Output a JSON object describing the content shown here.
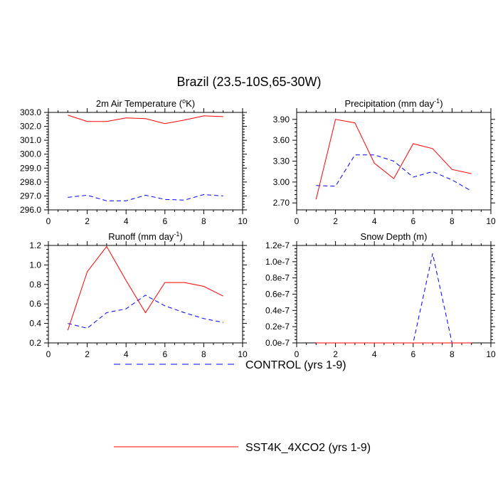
{
  "title": "Brazil (23.5-10S,65-30W)",
  "legend": {
    "entries": [
      {
        "label": "CONTROL (yrs 1-9)",
        "color": "#0000ff",
        "dash": true
      },
      {
        "label": "SST4K_4XCO2 (yrs 1-9)",
        "color": "#ff0000",
        "dash": false
      }
    ]
  },
  "chart_data": [
    {
      "type": "line",
      "title": "2m Air Temperature (",
      "title_sup": "o",
      "title_after": "K)",
      "x": [
        1,
        2,
        3,
        4,
        5,
        6,
        7,
        8,
        9
      ],
      "xlim": [
        0,
        10
      ],
      "xticks": [
        0,
        2,
        4,
        6,
        8,
        10
      ],
      "xtick_labels": [
        "0",
        "2",
        "4",
        "6",
        "8",
        "10"
      ],
      "ylim": [
        296,
        303
      ],
      "yticks": [
        296,
        297,
        298,
        299,
        300,
        301,
        302,
        303
      ],
      "ytick_labels": [
        "296.0",
        "297.0",
        "298.0",
        "299.0",
        "300.0",
        "301.0",
        "302.0",
        "303.0"
      ],
      "yaxis_side": "left",
      "series": [
        {
          "name": "CONTROL (yrs 1-9)",
          "values": [
            296.9,
            297.05,
            296.65,
            296.65,
            297.05,
            296.75,
            296.7,
            297.1,
            297.0
          ]
        },
        {
          "name": "SST4K_4XCO2 (yrs 1-9)",
          "values": [
            302.8,
            302.35,
            302.35,
            302.6,
            302.55,
            302.2,
            302.45,
            302.75,
            302.7
          ]
        }
      ]
    },
    {
      "type": "line",
      "title": "Precipitation (mm day",
      "title_sup": "-1",
      "title_after": ")",
      "x": [
        1,
        2,
        3,
        4,
        5,
        6,
        7,
        8,
        9
      ],
      "xlim": [
        0,
        10
      ],
      "xticks": [
        0,
        2,
        4,
        6,
        8,
        10
      ],
      "xtick_labels": [
        "0",
        "2",
        "4",
        "6",
        "8",
        "10"
      ],
      "ylim": [
        2.6,
        4.0
      ],
      "yticks": [
        2.7,
        3.0,
        3.3,
        3.6,
        3.9
      ],
      "ytick_labels": [
        "2.70",
        "3.00",
        "3.30",
        "3.60",
        "3.90"
      ],
      "yaxis_side": "left",
      "series": [
        {
          "name": "CONTROL (yrs 1-9)",
          "values": [
            2.95,
            2.94,
            3.39,
            3.39,
            3.3,
            3.07,
            3.15,
            3.03,
            2.87
          ]
        },
        {
          "name": "SST4K_4XCO2 (yrs 1-9)",
          "values": [
            2.75,
            3.9,
            3.85,
            3.27,
            3.05,
            3.55,
            3.48,
            3.18,
            3.12
          ]
        }
      ]
    },
    {
      "type": "line",
      "title": "Runoff (mm day",
      "title_sup": "-1",
      "title_after": ")",
      "x": [
        1,
        2,
        3,
        4,
        5,
        6,
        7,
        8,
        9
      ],
      "xlim": [
        0,
        10
      ],
      "xticks": [
        0,
        2,
        4,
        6,
        8,
        10
      ],
      "xtick_labels": [
        "0",
        "2",
        "4",
        "6",
        "8",
        "10"
      ],
      "ylim": [
        0.2,
        1.2
      ],
      "yticks": [
        0.2,
        0.4,
        0.6,
        0.8,
        1.0,
        1.2
      ],
      "ytick_labels": [
        "0.2",
        "0.4",
        "0.6",
        "0.8",
        "1.0",
        "1.2"
      ],
      "yaxis_side": "left",
      "series": [
        {
          "name": "CONTROL (yrs 1-9)",
          "values": [
            0.4,
            0.35,
            0.51,
            0.55,
            0.69,
            0.58,
            0.51,
            0.45,
            0.41
          ]
        },
        {
          "name": "SST4K_4XCO2 (yrs 1-9)",
          "values": [
            0.33,
            0.93,
            1.19,
            0.84,
            0.51,
            0.82,
            0.82,
            0.78,
            0.68
          ]
        }
      ]
    },
    {
      "type": "line",
      "title": "Snow Depth (m)",
      "title_sup": "",
      "title_after": "",
      "x": [
        1,
        2,
        3,
        4,
        5,
        6,
        7,
        8,
        9
      ],
      "xlim": [
        0,
        10
      ],
      "xticks": [
        0,
        2,
        4,
        6,
        8,
        10
      ],
      "xtick_labels": [
        "0",
        "2",
        "4",
        "6",
        "8",
        "10"
      ],
      "ylim": [
        0,
        1.2e-07
      ],
      "yticks": [
        0,
        2e-08,
        4e-08,
        6e-08,
        8e-08,
        1e-07,
        1.2e-07
      ],
      "ytick_labels": [
        "0.0e-7",
        "0.2e-7",
        "0.4e-7",
        "0.6e-7",
        "0.8e-7",
        "1.0e-7",
        "1.2e-7"
      ],
      "yaxis_side": "left",
      "series": [
        {
          "name": "CONTROL (yrs 1-9)",
          "values": [
            0,
            0,
            0,
            0,
            0,
            0,
            1.1e-07,
            0,
            0
          ]
        },
        {
          "name": "SST4K_4XCO2 (yrs 1-9)",
          "values": [
            0,
            0,
            0,
            0,
            0,
            0,
            0,
            0,
            0
          ]
        }
      ]
    }
  ]
}
